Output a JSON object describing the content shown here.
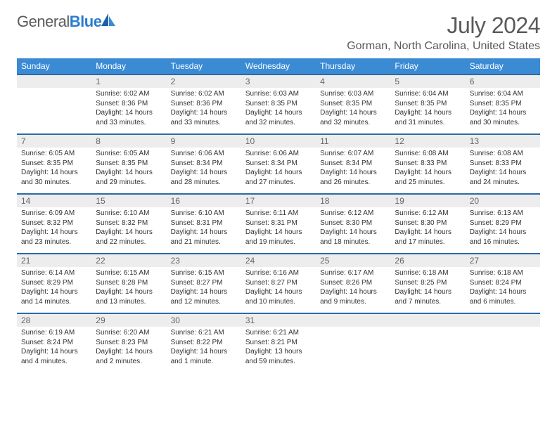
{
  "logo": {
    "part1": "General",
    "part2": "Blue"
  },
  "title": "July 2024",
  "location": "Gorman, North Carolina, United States",
  "colors": {
    "header_bg": "#3b8bd4",
    "header_border": "#2a6aa8",
    "daynum_bg": "#ededed",
    "text_gray": "#5a5a5a",
    "logo_blue": "#2a7ccf"
  },
  "day_headers": [
    "Sunday",
    "Monday",
    "Tuesday",
    "Wednesday",
    "Thursday",
    "Friday",
    "Saturday"
  ],
  "weeks": [
    [
      {
        "n": "",
        "sr": "",
        "ss": "",
        "dl": ""
      },
      {
        "n": "1",
        "sr": "Sunrise: 6:02 AM",
        "ss": "Sunset: 8:36 PM",
        "dl": "Daylight: 14 hours and 33 minutes."
      },
      {
        "n": "2",
        "sr": "Sunrise: 6:02 AM",
        "ss": "Sunset: 8:36 PM",
        "dl": "Daylight: 14 hours and 33 minutes."
      },
      {
        "n": "3",
        "sr": "Sunrise: 6:03 AM",
        "ss": "Sunset: 8:35 PM",
        "dl": "Daylight: 14 hours and 32 minutes."
      },
      {
        "n": "4",
        "sr": "Sunrise: 6:03 AM",
        "ss": "Sunset: 8:35 PM",
        "dl": "Daylight: 14 hours and 32 minutes."
      },
      {
        "n": "5",
        "sr": "Sunrise: 6:04 AM",
        "ss": "Sunset: 8:35 PM",
        "dl": "Daylight: 14 hours and 31 minutes."
      },
      {
        "n": "6",
        "sr": "Sunrise: 6:04 AM",
        "ss": "Sunset: 8:35 PM",
        "dl": "Daylight: 14 hours and 30 minutes."
      }
    ],
    [
      {
        "n": "7",
        "sr": "Sunrise: 6:05 AM",
        "ss": "Sunset: 8:35 PM",
        "dl": "Daylight: 14 hours and 30 minutes."
      },
      {
        "n": "8",
        "sr": "Sunrise: 6:05 AM",
        "ss": "Sunset: 8:35 PM",
        "dl": "Daylight: 14 hours and 29 minutes."
      },
      {
        "n": "9",
        "sr": "Sunrise: 6:06 AM",
        "ss": "Sunset: 8:34 PM",
        "dl": "Daylight: 14 hours and 28 minutes."
      },
      {
        "n": "10",
        "sr": "Sunrise: 6:06 AM",
        "ss": "Sunset: 8:34 PM",
        "dl": "Daylight: 14 hours and 27 minutes."
      },
      {
        "n": "11",
        "sr": "Sunrise: 6:07 AM",
        "ss": "Sunset: 8:34 PM",
        "dl": "Daylight: 14 hours and 26 minutes."
      },
      {
        "n": "12",
        "sr": "Sunrise: 6:08 AM",
        "ss": "Sunset: 8:33 PM",
        "dl": "Daylight: 14 hours and 25 minutes."
      },
      {
        "n": "13",
        "sr": "Sunrise: 6:08 AM",
        "ss": "Sunset: 8:33 PM",
        "dl": "Daylight: 14 hours and 24 minutes."
      }
    ],
    [
      {
        "n": "14",
        "sr": "Sunrise: 6:09 AM",
        "ss": "Sunset: 8:32 PM",
        "dl": "Daylight: 14 hours and 23 minutes."
      },
      {
        "n": "15",
        "sr": "Sunrise: 6:10 AM",
        "ss": "Sunset: 8:32 PM",
        "dl": "Daylight: 14 hours and 22 minutes."
      },
      {
        "n": "16",
        "sr": "Sunrise: 6:10 AM",
        "ss": "Sunset: 8:31 PM",
        "dl": "Daylight: 14 hours and 21 minutes."
      },
      {
        "n": "17",
        "sr": "Sunrise: 6:11 AM",
        "ss": "Sunset: 8:31 PM",
        "dl": "Daylight: 14 hours and 19 minutes."
      },
      {
        "n": "18",
        "sr": "Sunrise: 6:12 AM",
        "ss": "Sunset: 8:30 PM",
        "dl": "Daylight: 14 hours and 18 minutes."
      },
      {
        "n": "19",
        "sr": "Sunrise: 6:12 AM",
        "ss": "Sunset: 8:30 PM",
        "dl": "Daylight: 14 hours and 17 minutes."
      },
      {
        "n": "20",
        "sr": "Sunrise: 6:13 AM",
        "ss": "Sunset: 8:29 PM",
        "dl": "Daylight: 14 hours and 16 minutes."
      }
    ],
    [
      {
        "n": "21",
        "sr": "Sunrise: 6:14 AM",
        "ss": "Sunset: 8:29 PM",
        "dl": "Daylight: 14 hours and 14 minutes."
      },
      {
        "n": "22",
        "sr": "Sunrise: 6:15 AM",
        "ss": "Sunset: 8:28 PM",
        "dl": "Daylight: 14 hours and 13 minutes."
      },
      {
        "n": "23",
        "sr": "Sunrise: 6:15 AM",
        "ss": "Sunset: 8:27 PM",
        "dl": "Daylight: 14 hours and 12 minutes."
      },
      {
        "n": "24",
        "sr": "Sunrise: 6:16 AM",
        "ss": "Sunset: 8:27 PM",
        "dl": "Daylight: 14 hours and 10 minutes."
      },
      {
        "n": "25",
        "sr": "Sunrise: 6:17 AM",
        "ss": "Sunset: 8:26 PM",
        "dl": "Daylight: 14 hours and 9 minutes."
      },
      {
        "n": "26",
        "sr": "Sunrise: 6:18 AM",
        "ss": "Sunset: 8:25 PM",
        "dl": "Daylight: 14 hours and 7 minutes."
      },
      {
        "n": "27",
        "sr": "Sunrise: 6:18 AM",
        "ss": "Sunset: 8:24 PM",
        "dl": "Daylight: 14 hours and 6 minutes."
      }
    ],
    [
      {
        "n": "28",
        "sr": "Sunrise: 6:19 AM",
        "ss": "Sunset: 8:24 PM",
        "dl": "Daylight: 14 hours and 4 minutes."
      },
      {
        "n": "29",
        "sr": "Sunrise: 6:20 AM",
        "ss": "Sunset: 8:23 PM",
        "dl": "Daylight: 14 hours and 2 minutes."
      },
      {
        "n": "30",
        "sr": "Sunrise: 6:21 AM",
        "ss": "Sunset: 8:22 PM",
        "dl": "Daylight: 14 hours and 1 minute."
      },
      {
        "n": "31",
        "sr": "Sunrise: 6:21 AM",
        "ss": "Sunset: 8:21 PM",
        "dl": "Daylight: 13 hours and 59 minutes."
      },
      {
        "n": "",
        "sr": "",
        "ss": "",
        "dl": ""
      },
      {
        "n": "",
        "sr": "",
        "ss": "",
        "dl": ""
      },
      {
        "n": "",
        "sr": "",
        "ss": "",
        "dl": ""
      }
    ]
  ]
}
